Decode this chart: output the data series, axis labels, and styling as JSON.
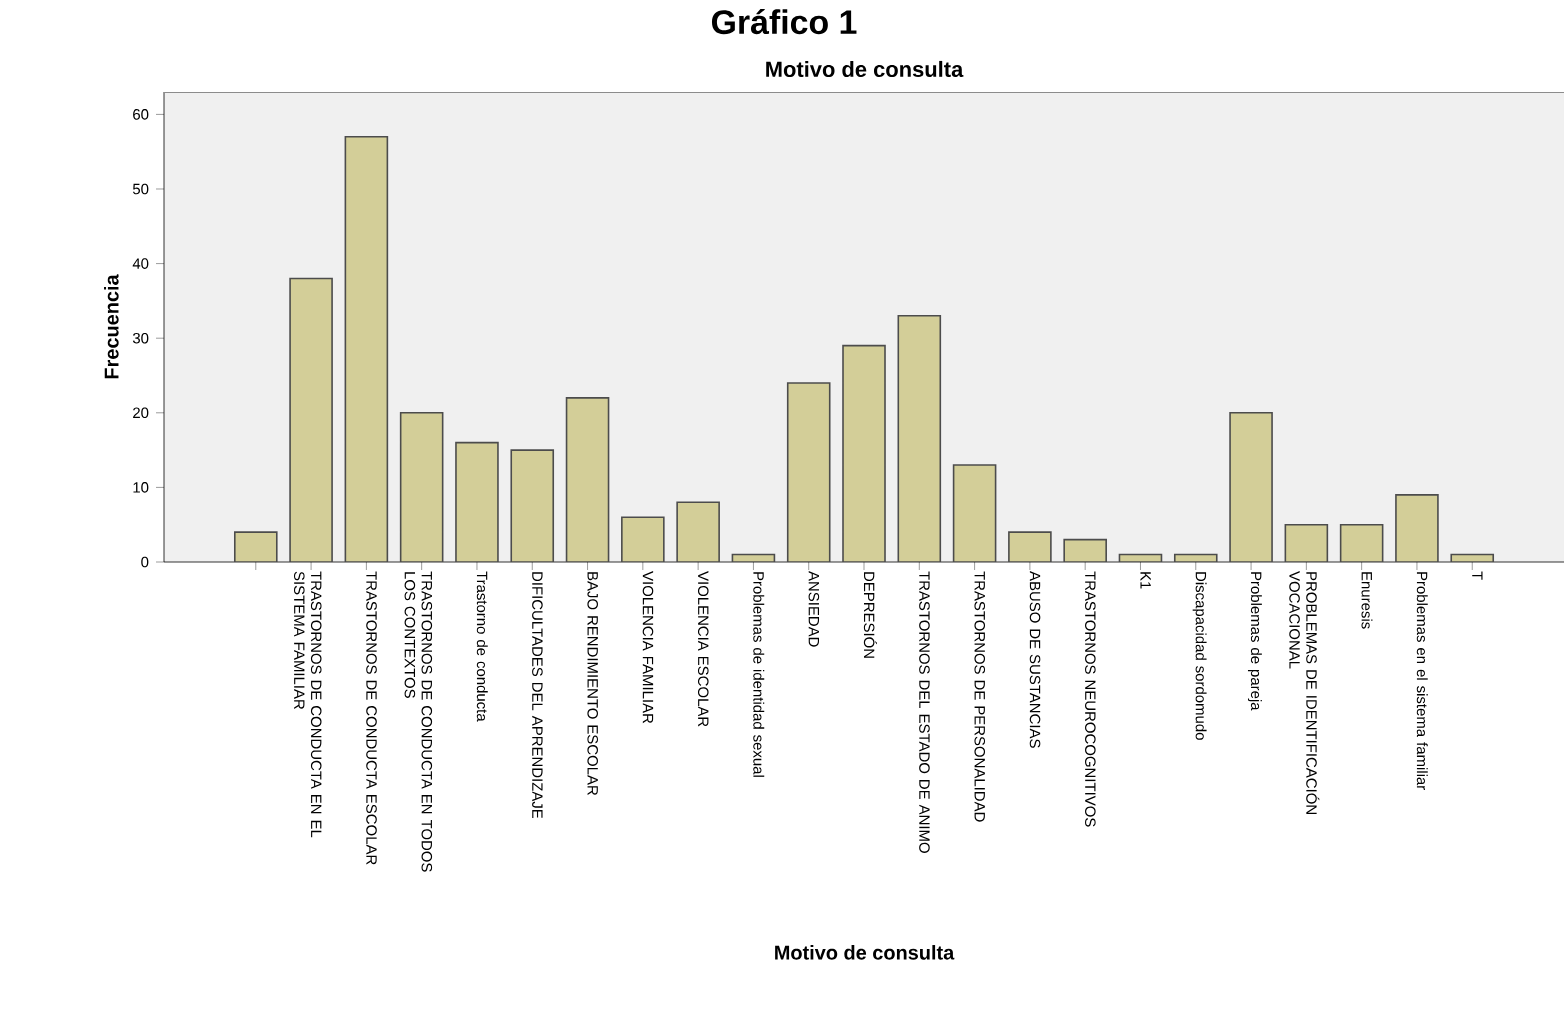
{
  "chart_data": {
    "type": "bar",
    "title": "Motivo de consulta",
    "xlabel": "Motivo de consulta",
    "ylabel": "Frecuencia",
    "annotations": [
      "Gráfico 1"
    ],
    "categories": [
      null,
      "TRASTORNOS DE CONDUCTA EN EL SISTEMA FAMILIAR",
      "TRASTORNOS DE CONDUCTA ESCOLAR",
      "TRASTORNOS DE CONDUCTA EN TODOS LOS CONTEXTOS",
      "Trastorno de conducta",
      "DIFICULTADES DEL APRENDIZAJE",
      "BAJO RENDIMIENTO ESCOLAR",
      "VIOLENCIA FAMILIAR",
      "VIOLENCIA ESCOLAR",
      "Problemas de identidad sexual",
      "ANSIEDAD",
      "DEPRESIÓN",
      "TRASTORNOS DEL ESTADO DE ANIMO",
      "TRASTORNOS DE PERSONALIDAD",
      "ABUSO DE SUSTANCIAS",
      "TRASTORNOS NEUROCOGNITIVOS",
      "K1",
      "Discapacidad sordomudo",
      "Problemas de pareja",
      "PROBLEMAS DE IDENTIFICACIÓN VOCACIONAL",
      "Enuresis",
      "Problemas en el sistema familiar",
      "T"
    ],
    "values": [
      4,
      38,
      57,
      20,
      16,
      15,
      22,
      6,
      8,
      1,
      24,
      29,
      33,
      13,
      4,
      3,
      1,
      1,
      20,
      5,
      5,
      9,
      1
    ],
    "color": "#d3ce98",
    "ylim": [
      0,
      63
    ],
    "yticks": [
      0,
      10,
      20,
      30,
      40,
      50,
      60
    ],
    "grid": false
  }
}
